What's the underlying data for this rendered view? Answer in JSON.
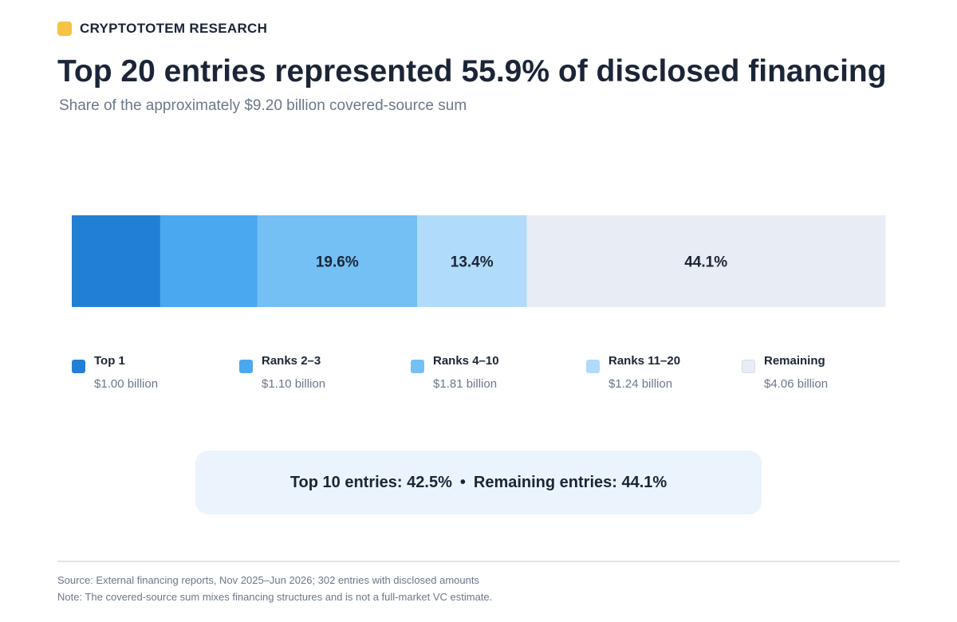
{
  "brand": {
    "name": "CRYPTOTOTEM RESEARCH",
    "color": "#f6c343"
  },
  "header": {
    "title": "Top 20 entries represented 55.9% of disclosed financing",
    "subtitle": "Share of the approximately $9.20 billion covered-source sum"
  },
  "chart_data": {
    "type": "bar",
    "orientation": "horizontal-stacked",
    "unit": "billion USD",
    "total": 9.2,
    "segments": [
      {
        "name": "Top 1",
        "value": 1.0,
        "value_label": "$1.00 billion",
        "share_label": "",
        "color": "#2180d4"
      },
      {
        "name": "Ranks 2–3",
        "value": 1.1,
        "value_label": "$1.10 billion",
        "share_label": "",
        "color": "#4aa8f0"
      },
      {
        "name": "Ranks 4–10",
        "value": 1.81,
        "value_label": "$1.81 billion",
        "share_label": "19.6%",
        "color": "#74c0f4"
      },
      {
        "name": "Ranks 11–20",
        "value": 1.24,
        "value_label": "$1.24 billion",
        "share_label": "13.4%",
        "color": "#b0dbfa"
      },
      {
        "name": "Remaining",
        "value": 4.06,
        "value_label": "$4.06 billion",
        "share_label": "44.1%",
        "color": "#e8ecf4"
      }
    ],
    "legend_position": "bottom",
    "grid": false
  },
  "callout": {
    "left_text": "Top 10 entries: 42.5%",
    "separator": "•",
    "right_text": "Remaining entries: 44.1%"
  },
  "footer": {
    "source": "Source: External financing reports, Nov 2025–Jun 2026; 302 entries with disclosed amounts",
    "note": "Note: The covered-source sum mixes financing structures and is not a full-market VC estimate."
  }
}
